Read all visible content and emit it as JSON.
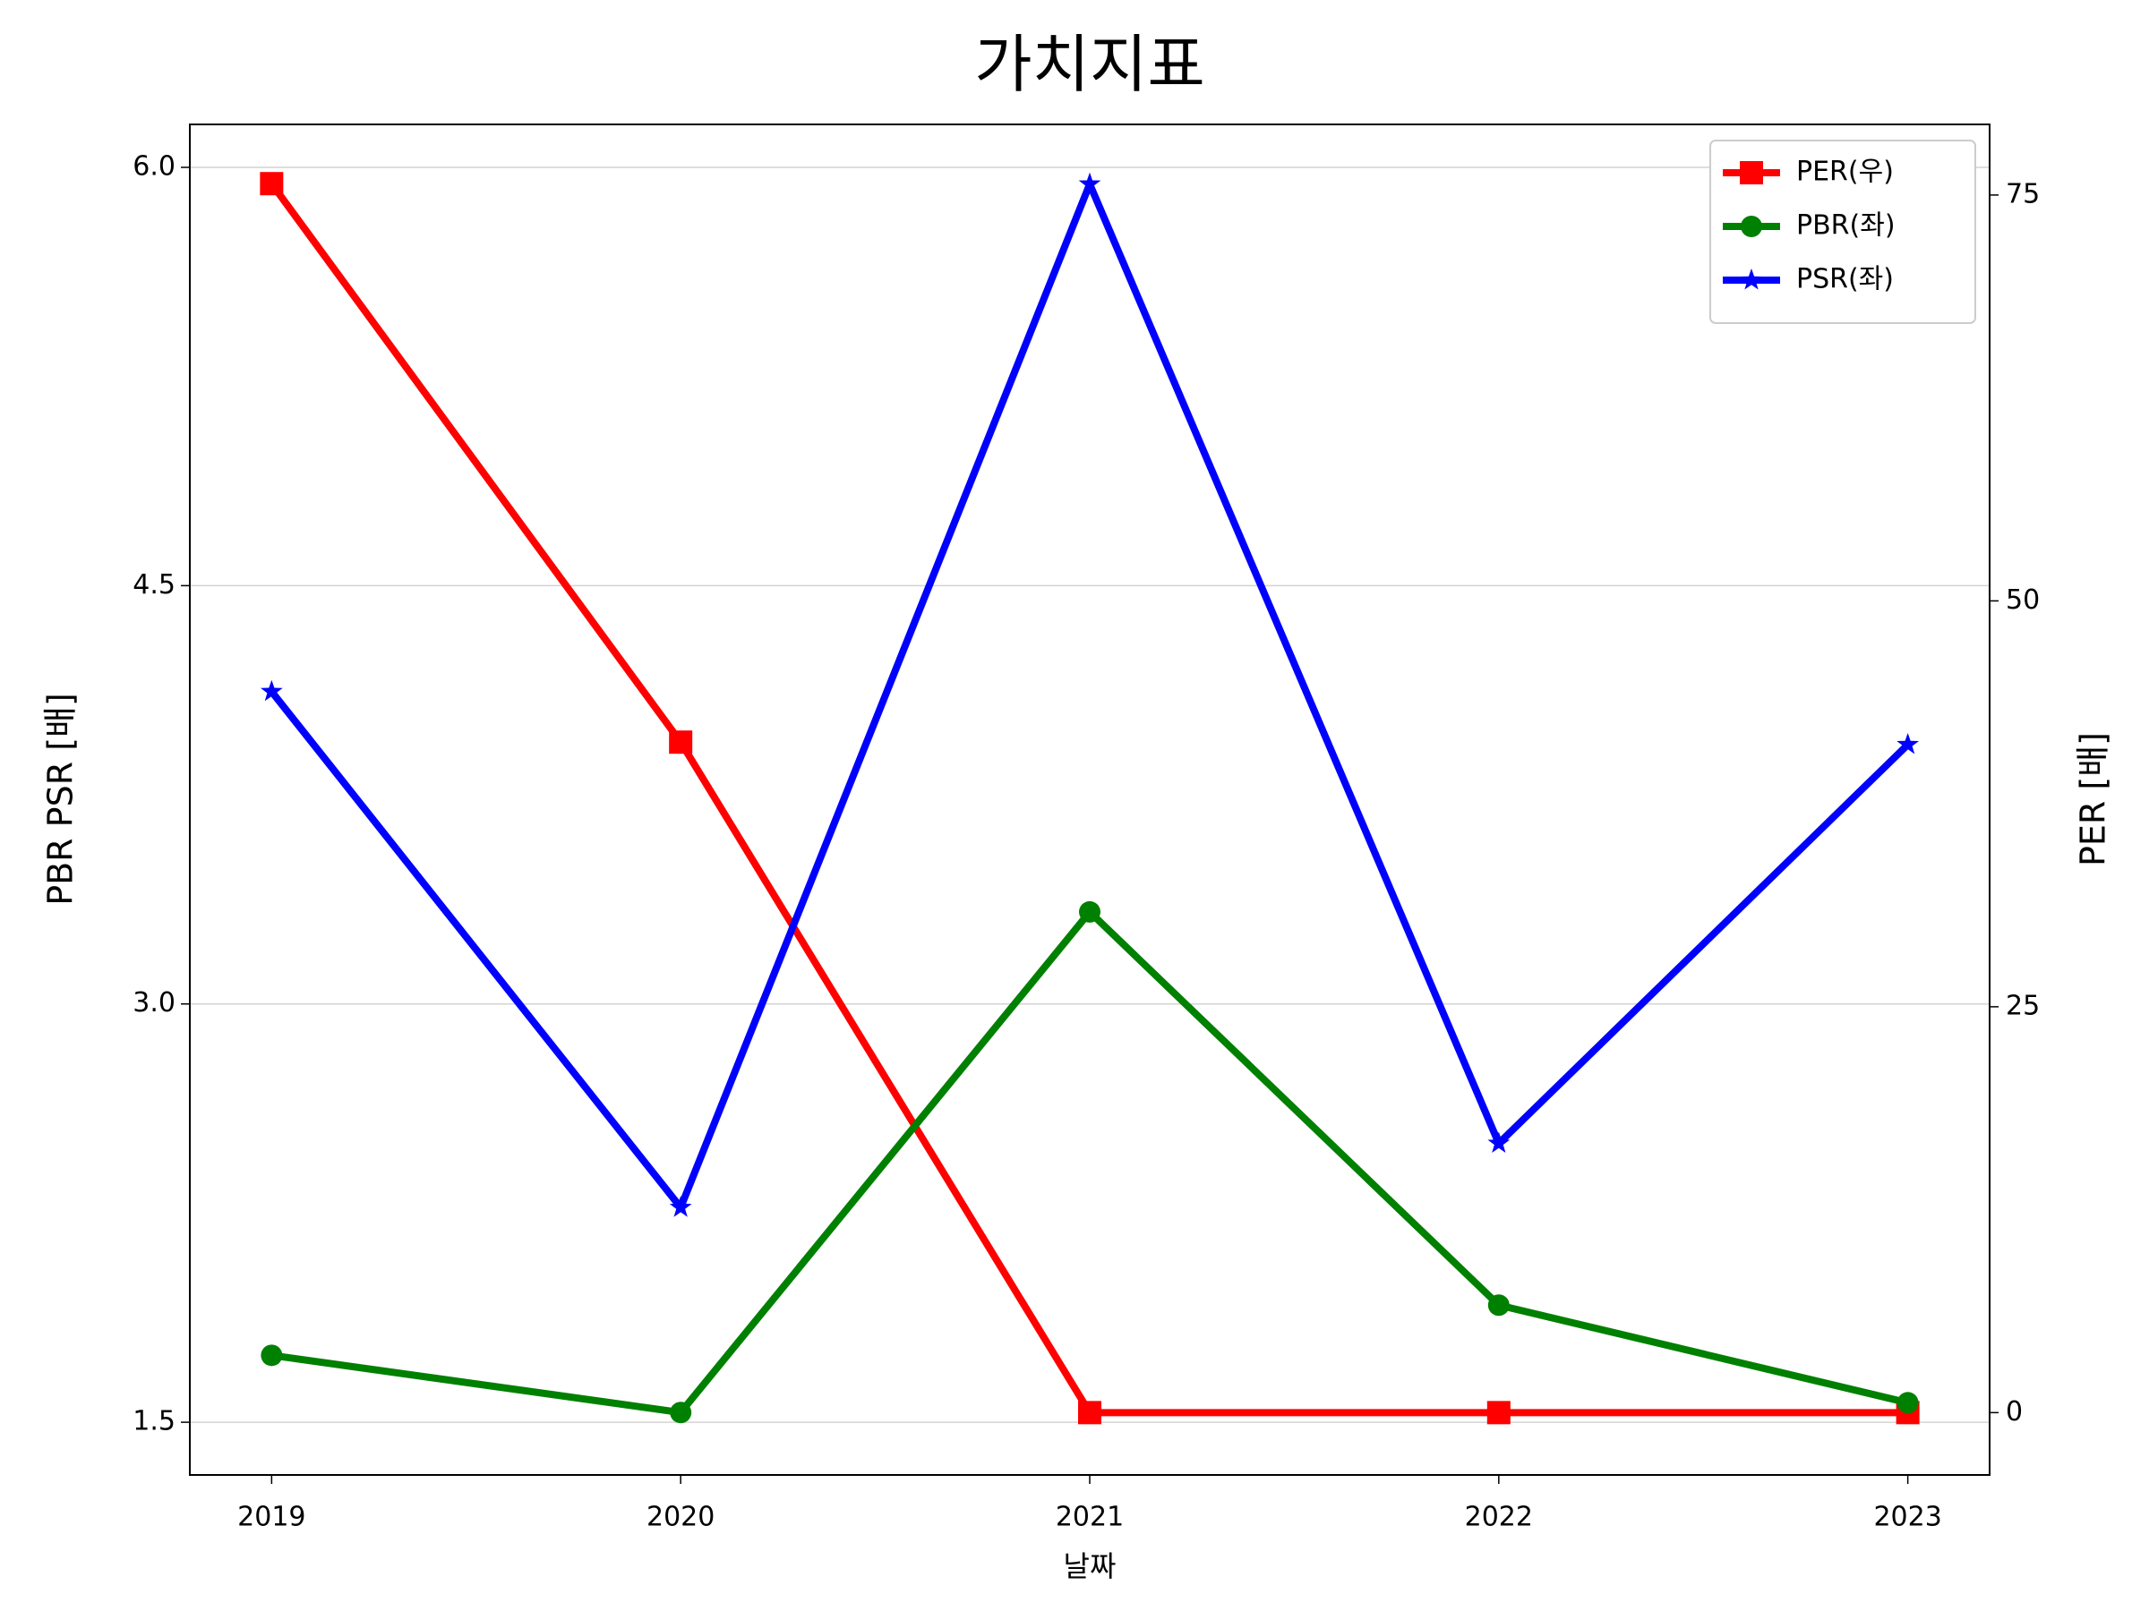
{
  "chart_data": {
    "type": "line",
    "title": "가치지표",
    "x_label": "날짜",
    "y_label": "PBR PSR [배]",
    "y2_label": "PER [배]",
    "x": [
      2019,
      2020,
      2021,
      2022,
      2023
    ],
    "xlim": [
      2018.8,
      2023.2
    ],
    "xticks": [
      2019,
      2020,
      2021,
      2022,
      2023
    ],
    "ylim": [
      1.311,
      6.154
    ],
    "yticks": [
      1.5,
      {
        "value": 3.0,
        "label": "3.0"
      },
      4.5,
      {
        "value": 6.0,
        "label": "6.0"
      }
    ],
    "y2lim": [
      -3.84,
      79.35
    ],
    "y2ticks": [
      0,
      25,
      50,
      75
    ],
    "grid": true,
    "legend": "upper right",
    "series": [
      {
        "name": "PER(우)",
        "color": "#ff0000",
        "marker": "square",
        "axis": "y2",
        "values": [
          75.7,
          41.3,
          0,
          0,
          0
        ]
      },
      {
        "name": "PBR(좌)",
        "color": "#008000",
        "marker": "circle",
        "values": [
          1.74,
          1.535,
          3.33,
          1.92,
          1.57
        ]
      },
      {
        "name": "PSR(좌)",
        "color": "#0000ff",
        "marker": "star",
        "values": [
          4.12,
          2.27,
          5.94,
          2.5,
          3.93
        ]
      }
    ]
  }
}
